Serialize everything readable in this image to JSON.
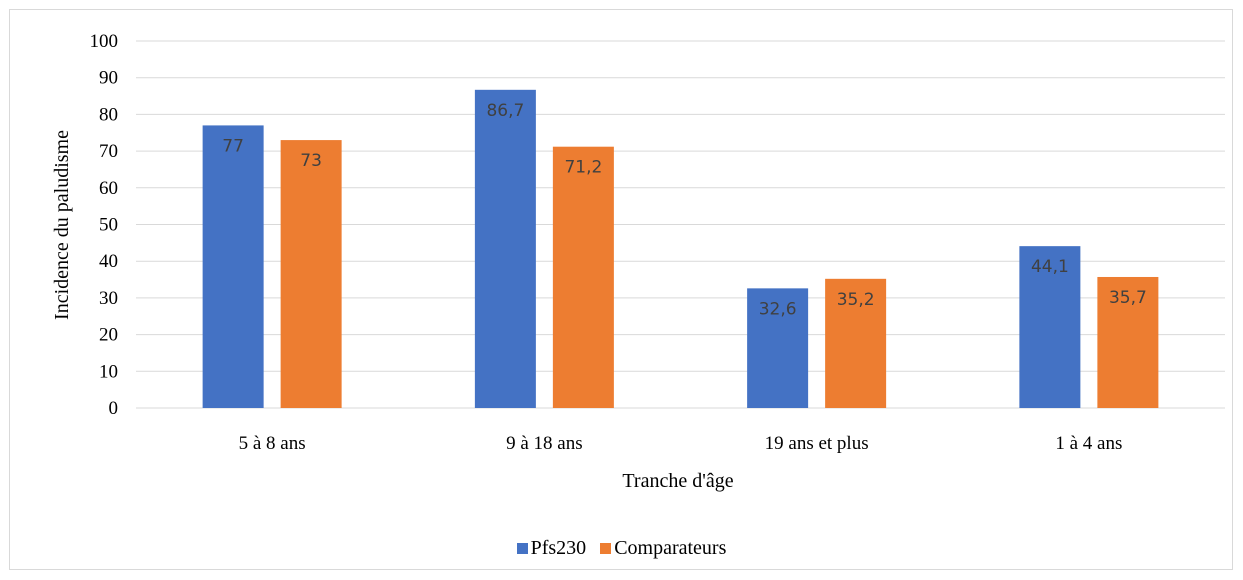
{
  "chart_data": {
    "type": "bar",
    "title": "",
    "xlabel": "Tranche d'âge",
    "ylabel": "Incidence du paludisme",
    "categories": [
      "5 à 8 ans",
      "9 à 18 ans",
      "19 ans et plus",
      "1 à 4 ans"
    ],
    "series": [
      {
        "name": "Pfs230",
        "values": [
          77,
          86.7,
          32.6,
          44.1
        ],
        "labels": [
          "77",
          "86,7",
          "32,6",
          "44,1"
        ],
        "color": "#4472C4"
      },
      {
        "name": "Comparateurs",
        "values": [
          73,
          71.2,
          35.2,
          35.7
        ],
        "labels": [
          "73",
          "71,2",
          "35,2",
          "35,7"
        ],
        "color": "#ED7D31"
      }
    ],
    "ylim": [
      0,
      100
    ],
    "yticks": [
      "0",
      "10",
      "20",
      "30",
      "40",
      "50",
      "60",
      "70",
      "80",
      "90",
      "100"
    ],
    "grid": true,
    "legend_position": "bottom"
  }
}
